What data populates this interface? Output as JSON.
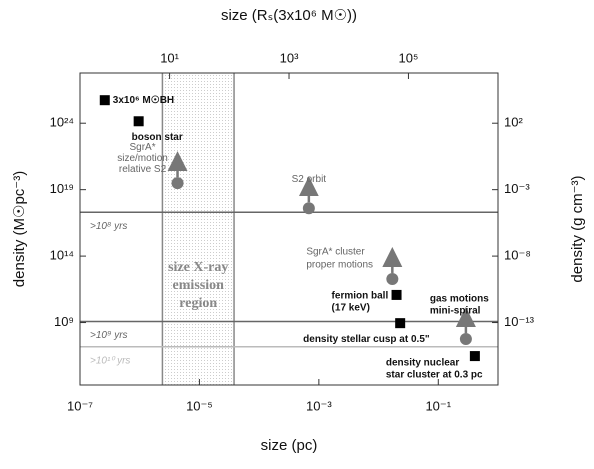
{
  "chart_data": {
    "type": "scatter",
    "xlabel": "size (pc)",
    "ylabel": "density (M☉pc⁻³)",
    "y2label": "density (g cm⁻³)",
    "x2label": "size (Rₛ(3x10⁶ M☉))",
    "log_x": true,
    "log_y": true,
    "xlim": [
      1e-07,
      1
    ],
    "xticks": [
      {
        "value": 1e-07,
        "label": "10⁻⁷"
      },
      {
        "value": 1e-05,
        "label": "10⁻⁵"
      },
      {
        "value": 0.001,
        "label": "10⁻³"
      },
      {
        "value": 0.1,
        "label": "10⁻¹"
      }
    ],
    "x2lim": [
      0.316,
      3160000
    ],
    "x2ticks": [
      {
        "value": 10,
        "label": "10¹"
      },
      {
        "value": 1000,
        "label": "10³"
      },
      {
        "value": 100000,
        "label": "10⁵"
      }
    ],
    "ylim": [
      20000,
      6e+27
    ],
    "yticks": [
      {
        "value": 1000000000.0,
        "label": "10⁹"
      },
      {
        "value": 100000000000000.0,
        "label": "10¹⁴"
      },
      {
        "value": 1e+19,
        "label": "10¹⁹"
      },
      {
        "value": 1e+24,
        "label": "10²⁴"
      }
    ],
    "y2lim": [
      2e-18,
      600000
    ],
    "y2ticks": [
      {
        "value": 1e-13,
        "label": "10⁻¹³"
      },
      {
        "value": 1e-08,
        "label": "10⁻⁸"
      },
      {
        "value": 0.001,
        "label": "10⁻³"
      },
      {
        "value": 100,
        "label": "10²"
      }
    ],
    "region": {
      "label": [
        "size X-ray",
        "emission",
        "region"
      ],
      "x": [
        2.4e-06,
        3.8e-05
      ]
    },
    "timescales": [
      {
        "label": ">10⁸ yrs",
        "value": 2e+17,
        "color": "#666666"
      },
      {
        "label": ">10⁹ yrs",
        "value": 1200000000.0,
        "color": "#666666"
      },
      {
        "label": ">10¹⁰ yrs",
        "value": 15000000.0,
        "color": "#bbbbbb"
      }
    ],
    "points": [
      {
        "label": [
          "3x10⁶ M☉BH"
        ],
        "x": 2.6e-07,
        "y": 5.4e+25,
        "marker": "square",
        "lower_limit": false
      },
      {
        "label": [
          "boson star"
        ],
        "x": 9.6e-07,
        "y": 1.4e+24,
        "marker": "square",
        "lower_limit": false
      },
      {
        "label": [
          "SgrA*",
          "size/motion",
          "relative S2"
        ],
        "x": 4.3e-06,
        "y": 3.1e+19,
        "marker": "circle",
        "lower_limit": true
      },
      {
        "label": [
          "S2 orbit"
        ],
        "x": 0.00068,
        "y": 4e+17,
        "marker": "circle",
        "lower_limit": true
      },
      {
        "label": [
          "SgrA* cluster",
          "proper motions"
        ],
        "x": 0.017,
        "y": 1900000000000.0,
        "marker": "circle",
        "lower_limit": true
      },
      {
        "label": [
          "fermion ball",
          "(17 keV)"
        ],
        "x": 0.02,
        "y": 120000000000.0,
        "marker": "square",
        "lower_limit": false
      },
      {
        "label": [
          "density stellar cusp at 0.5\""
        ],
        "x": 0.023,
        "y": 900000000.0,
        "marker": "square",
        "lower_limit": false
      },
      {
        "label": [
          "gas motions",
          "mini-spiral"
        ],
        "x": 0.29,
        "y": 58000000.0,
        "marker": "circle",
        "lower_limit": true
      },
      {
        "label": [
          "density nuclear",
          "star cluster at 0.3 pc"
        ],
        "x": 0.41,
        "y": 3000000.0,
        "marker": "square",
        "lower_limit": false
      }
    ]
  }
}
